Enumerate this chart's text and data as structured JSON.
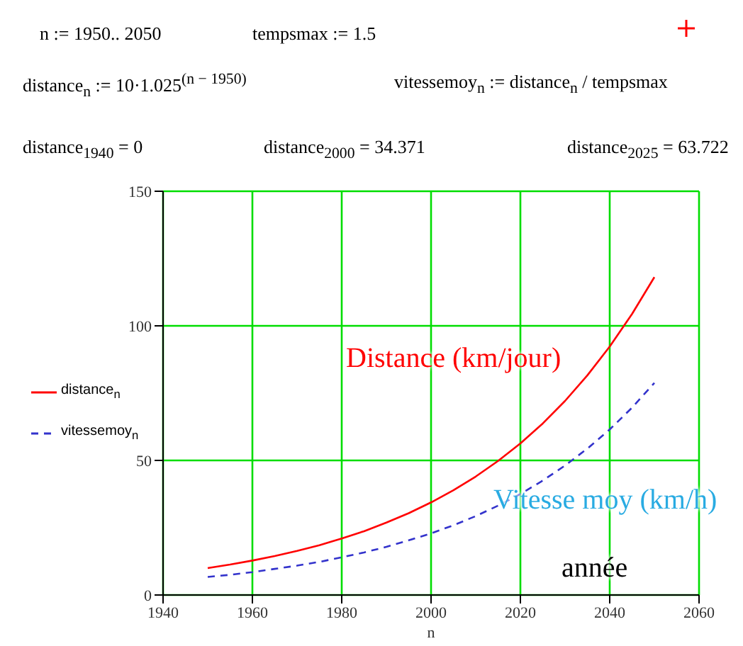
{
  "chart_data": {
    "type": "line",
    "xlabel": "n",
    "x": [
      1950,
      1955,
      1960,
      1965,
      1970,
      1975,
      1980,
      1985,
      1990,
      1995,
      2000,
      2005,
      2010,
      2015,
      2020,
      2025,
      2030,
      2035,
      2040,
      2045,
      2050
    ],
    "series": [
      {
        "name": "distance$_{n}$",
        "color": "#ff0000",
        "line_style": "solid",
        "values": [
          10,
          11.3,
          12.8,
          14.5,
          16.4,
          18.5,
          21.0,
          23.7,
          26.9,
          30.4,
          34.4,
          38.9,
          44.0,
          49.8,
          56.3,
          63.7,
          72.1,
          81.6,
          92.3,
          104.4,
          118.1
        ]
      },
      {
        "name": "vitessemoy$_{n}$",
        "color": "#3333cc",
        "line_style": "dashed",
        "values": [
          6.7,
          7.5,
          8.5,
          9.7,
          10.9,
          12.3,
          14.0,
          15.8,
          17.9,
          20.3,
          22.9,
          25.9,
          29.3,
          33.2,
          37.5,
          42.5,
          48.1,
          54.4,
          61.5,
          69.6,
          78.8
        ]
      }
    ],
    "xlim": [
      1940,
      2060
    ],
    "xticks": [
      1940,
      1960,
      1980,
      2000,
      2020,
      2040,
      2060
    ],
    "ylim": [
      0,
      150
    ],
    "yticks": [
      0,
      50,
      100,
      150
    ],
    "grid": true,
    "legend": "left",
    "marker": "none",
    "annotations": [
      "n := 1950.. 2050",
      "tempsmax := 1.5",
      "distance$_{n}$ := 10·1.025$^{(n − 1950)}$",
      "vitessemoy$_{n}$ := distance$_{n}$ / tempsmax",
      "distance$_{1940}$ = 0",
      "distance$_{2000}$ = 34.371",
      "distance$_{2025}$ = 63.722",
      "Distance (km/jour)",
      "Vitesse moy (km/h)",
      "année"
    ]
  }
}
